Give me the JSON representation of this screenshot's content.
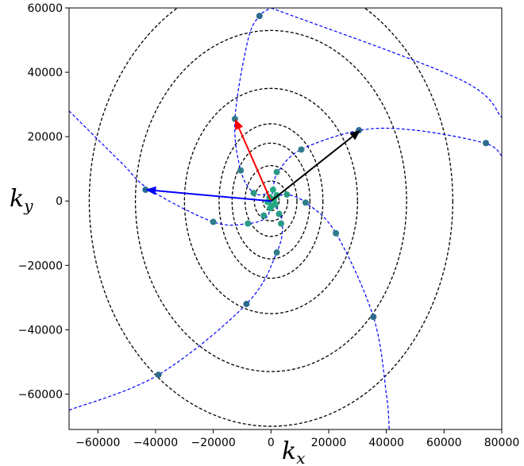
{
  "chart_data": {
    "type": "scatter",
    "title": "",
    "xlabel_main": "k",
    "xlabel_sub": "x",
    "ylabel_main": "k",
    "ylabel_sub": "y",
    "xlim": [
      -70000,
      80000
    ],
    "ylim": [
      -71000,
      60000
    ],
    "xticks": [
      -60000,
      -40000,
      -20000,
      0,
      20000,
      40000,
      60000,
      80000
    ],
    "yticks": [
      -60000,
      -40000,
      -20000,
      0,
      20000,
      40000,
      60000
    ],
    "xtick_labels": [
      "−60000",
      "−40000",
      "−20000",
      "0",
      "20000",
      "40000",
      "60000",
      "80000"
    ],
    "ytick_labels": [
      "−60000",
      "−40000",
      "−20000",
      "0",
      "20000",
      "40000",
      "60000"
    ],
    "grid": false,
    "center": [
      0,
      0
    ],
    "contours": [
      {
        "rx": 2800,
        "ry": 3000
      },
      {
        "rx": 5800,
        "ry": 6200
      },
      {
        "rx": 9000,
        "ry": 11000
      },
      {
        "rx": 13500,
        "ry": 18000
      },
      {
        "rx": 18000,
        "ry": 24000
      },
      {
        "rx": 30000,
        "ry": 35000
      },
      {
        "rx": 47000,
        "ry": 53000
      },
      {
        "rx": 63000,
        "ry": 70000
      }
    ],
    "contour_color": "#000000",
    "curve_color": "#0000ff",
    "spiral_arms": [
      {
        "points": [
          [
            -70000,
            28000
          ],
          [
            -52000,
            12000
          ],
          [
            -42000,
            3500
          ],
          [
            -20000,
            -6500
          ],
          [
            -8000,
            -7000
          ],
          [
            -1500,
            -5000
          ],
          [
            0,
            0
          ],
          [
            700,
            3500
          ],
          [
            2400,
            9000
          ],
          [
            10500,
            16000
          ],
          [
            31000,
            22000
          ],
          [
            50000,
            22000
          ],
          [
            74000,
            18000
          ],
          [
            80000,
            14000
          ]
        ]
      },
      {
        "points": [
          [
            -70000,
            -65000
          ],
          [
            -39000,
            -54000
          ],
          [
            -8500,
            -32000
          ],
          [
            2000,
            -16000
          ],
          [
            4000,
            -7000
          ],
          [
            2000,
            -2000
          ],
          [
            0,
            0
          ],
          [
            -1000,
            2000
          ],
          [
            -6000,
            2500
          ],
          [
            -10500,
            9500
          ],
          [
            -12500,
            25500
          ],
          [
            -8000,
            50000
          ],
          [
            -4000,
            57500
          ],
          [
            0,
            60000
          ]
        ]
      },
      {
        "points": [
          [
            0,
            60000
          ],
          [
            65000,
            38000
          ],
          [
            80000,
            26000
          ]
        ]
      },
      {
        "points": [
          [
            0,
            0
          ],
          [
            1500,
            1000
          ],
          [
            5500,
            2000
          ],
          [
            12000,
            -500
          ],
          [
            22500,
            -10000
          ],
          [
            35500,
            -36000
          ],
          [
            40000,
            -60000
          ],
          [
            41000,
            -71000
          ]
        ]
      }
    ],
    "markers": [
      [
        -4000,
        57500
      ],
      [
        -12500,
        25500
      ],
      [
        30500,
        22000
      ],
      [
        74500,
        18000
      ],
      [
        10500,
        16000
      ],
      [
        -10500,
        9500
      ],
      [
        2000,
        9000
      ],
      [
        -43500,
        3500
      ],
      [
        -6000,
        2500
      ],
      [
        700,
        3500
      ],
      [
        5500,
        2000
      ],
      [
        12000,
        -500
      ],
      [
        -20000,
        -6500
      ],
      [
        -8000,
        -7000
      ],
      [
        -2500,
        -4500
      ],
      [
        2800,
        -4000
      ],
      [
        3500,
        -7000
      ],
      [
        2000,
        -16000
      ],
      [
        22500,
        -10000
      ],
      [
        -8500,
        -32000
      ],
      [
        35500,
        -36000
      ],
      [
        -39000,
        -54000
      ],
      [
        1000,
        500
      ],
      [
        -500,
        1200
      ],
      [
        1500,
        -1000
      ],
      [
        -1200,
        -300
      ],
      [
        300,
        -1500
      ],
      [
        2000,
        1800
      ],
      [
        -300,
        -2200
      ]
    ],
    "marker_colors": [
      "#2c6a8e",
      "#2e7d8b",
      "#2a9a88",
      "#23a884"
    ],
    "arrows": [
      {
        "from": [
          0,
          0
        ],
        "to": [
          -12500,
          25500
        ],
        "color": "#ff0000"
      },
      {
        "from": [
          0,
          0
        ],
        "to": [
          31000,
          22000
        ],
        "color": "#000000"
      },
      {
        "from": [
          0,
          0
        ],
        "to": [
          -43500,
          3500
        ],
        "color": "#0000ff"
      }
    ]
  }
}
